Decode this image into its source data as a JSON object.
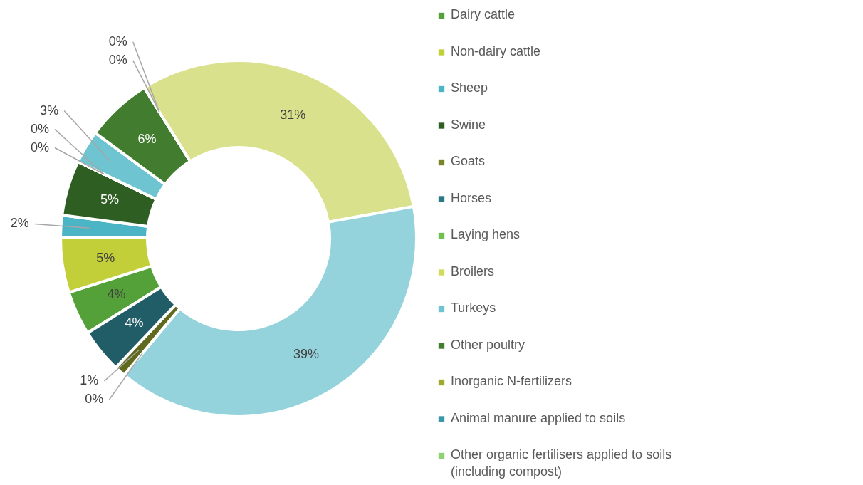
{
  "chart_data": {
    "type": "donut",
    "categories": [
      "Dairy cattle",
      "Non-dairy cattle",
      "Sheep",
      "Swine",
      "Goats",
      "Horses",
      "Laying hens",
      "Broilers",
      "Turkeys",
      "Other poultry",
      "Inorganic N-fertilizers",
      "Animal manure applied to soils",
      "Other organic fertilisers applied to soils (including compost)",
      null,
      null,
      null,
      null,
      null
    ],
    "values": [
      4,
      5,
      2,
      5,
      0,
      0,
      0,
      0,
      3,
      6,
      0,
      0,
      0,
      31,
      39,
      0,
      1,
      4
    ],
    "value_labels": [
      "4%",
      "5%",
      "2%",
      "5%",
      "0%",
      "0%",
      null,
      null,
      "3%",
      "6%",
      "0%",
      "0%",
      null,
      "31%",
      "39%",
      "0%",
      "1%",
      "4%"
    ],
    "colors": [
      "#54a13a",
      "#c3cf38",
      "#4bb5c6",
      "#2f5e22",
      "#7a8424",
      "#2a7a86",
      "#70c050",
      "#cfdc5c",
      "#6ec4d1",
      "#427d2f",
      "#a0aa2c",
      "#3a98a8",
      "#8fd070",
      "#dae18c",
      "#94d3dc",
      "#3c7a2a",
      "#5f6a1e",
      "#215d66"
    ],
    "legend": "right"
  }
}
